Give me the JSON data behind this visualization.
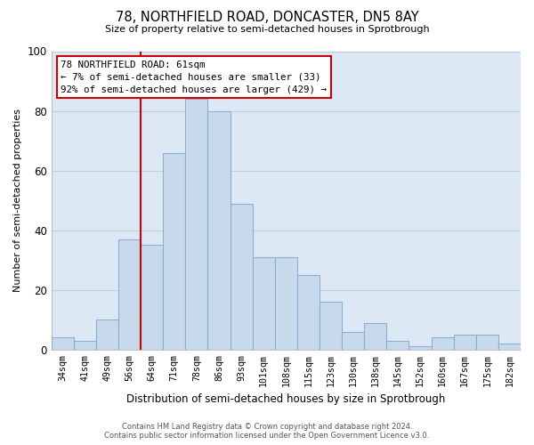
{
  "title": "78, NORTHFIELD ROAD, DONCASTER, DN5 8AY",
  "subtitle": "Size of property relative to semi-detached houses in Sprotbrough",
  "xlabel": "Distribution of semi-detached houses by size in Sprotbrough",
  "ylabel": "Number of semi-detached properties",
  "categories": [
    "34sqm",
    "41sqm",
    "49sqm",
    "56sqm",
    "64sqm",
    "71sqm",
    "78sqm",
    "86sqm",
    "93sqm",
    "101sqm",
    "108sqm",
    "115sqm",
    "123sqm",
    "130sqm",
    "138sqm",
    "145sqm",
    "152sqm",
    "160sqm",
    "167sqm",
    "175sqm",
    "182sqm"
  ],
  "values": [
    4,
    3,
    10,
    37,
    35,
    66,
    84,
    80,
    49,
    31,
    31,
    25,
    16,
    6,
    9,
    3,
    1,
    4,
    5,
    5,
    2
  ],
  "bar_color": "#c8d9ec",
  "bar_edge_color": "#8aafd4",
  "vline_color": "#cc0000",
  "annotation_line1": "78 NORTHFIELD ROAD: 61sqm",
  "annotation_line2": "← 7% of semi-detached houses are smaller (33)",
  "annotation_line3": "92% of semi-detached houses are larger (429) →",
  "ylim": [
    0,
    100
  ],
  "yticks": [
    0,
    20,
    40,
    60,
    80,
    100
  ],
  "background_color": "#ffffff",
  "plot_bg_color": "#dde8f5",
  "grid_color": "#c0cfe0",
  "footer_line1": "Contains HM Land Registry data © Crown copyright and database right 2024.",
  "footer_line2": "Contains public sector information licensed under the Open Government Licence v3.0."
}
